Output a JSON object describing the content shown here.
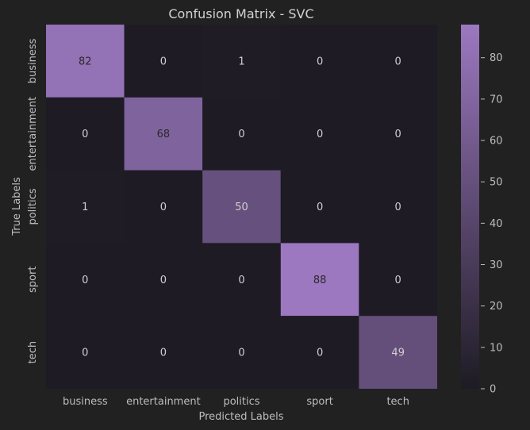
{
  "chart_data": {
    "type": "heatmap",
    "title": "Confusion Matrix - SVC",
    "xlabel": "Predicted Labels",
    "ylabel": "True Labels",
    "x_categories": [
      "business",
      "entertainment",
      "politics",
      "sport",
      "tech"
    ],
    "y_categories": [
      "business",
      "entertainment",
      "politics",
      "sport",
      "tech"
    ],
    "values": [
      [
        82,
        0,
        1,
        0,
        0
      ],
      [
        0,
        68,
        0,
        0,
        0
      ],
      [
        1,
        0,
        50,
        0,
        0
      ],
      [
        0,
        0,
        0,
        88,
        0
      ],
      [
        0,
        0,
        0,
        0,
        49
      ]
    ],
    "colorbar": {
      "min": 0,
      "max": 88,
      "ticks": [
        0,
        10,
        20,
        30,
        40,
        50,
        60,
        70,
        80
      ],
      "low_color": "#1e1b24",
      "high_color": "#9c78c0"
    },
    "grid": false
  }
}
